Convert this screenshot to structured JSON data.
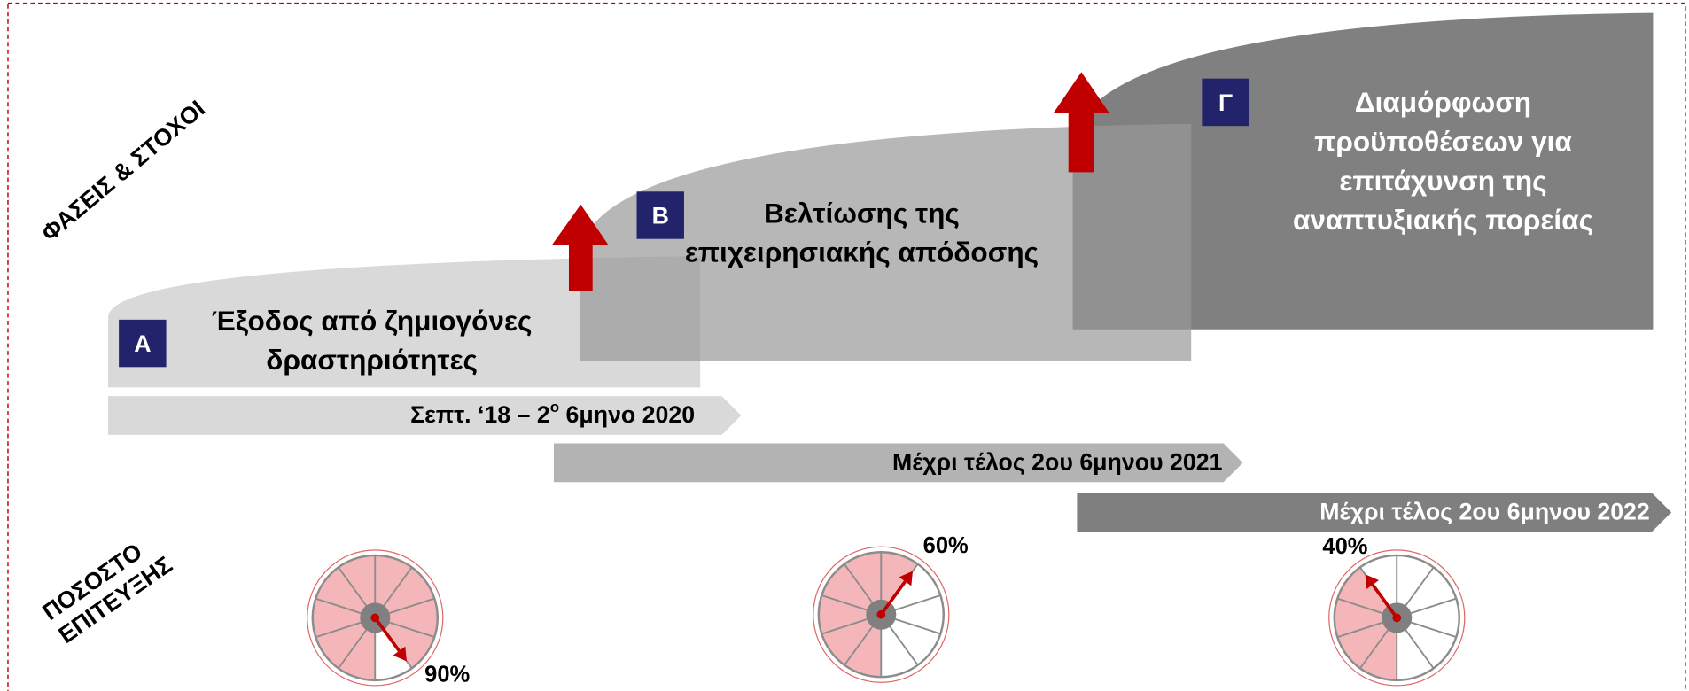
{
  "side_labels": {
    "phases": "ΦΑΣΕΙΣ & ΣΤΟΧΟΙ",
    "achievement": [
      "ΠΟΣΟΣΤΟ",
      "ΕΠΙΤΕΥΞΗΣ"
    ]
  },
  "phases": [
    {
      "letter": "Α",
      "title": [
        "Έξοδος από ζημιογόνες",
        "δραστηριότητες"
      ],
      "period": [
        "Σεπτ. ‘18 – 2",
        "ο",
        " 6μηνο 2020"
      ],
      "achievement": {
        "value": 90,
        "label": "90%"
      }
    },
    {
      "letter": "Β",
      "title": [
        "Βελτίωσης της",
        "επιχειρησιακής απόδοσης"
      ],
      "period": [
        "Μέχρι τέλος 2ου 6μηνου 2021"
      ],
      "achievement": {
        "value": 60,
        "label": "60%"
      }
    },
    {
      "letter": "Γ",
      "title": [
        "Διαμόρφωση",
        "προϋποθέσεων για",
        "επιτάχυνση της",
        "αναπτυξιακής πορείας"
      ],
      "period": [
        "Μέχρι τέλος 2ου 6μηνου 2022"
      ],
      "achievement": {
        "value": 40,
        "label": "40%"
      }
    }
  ]
}
